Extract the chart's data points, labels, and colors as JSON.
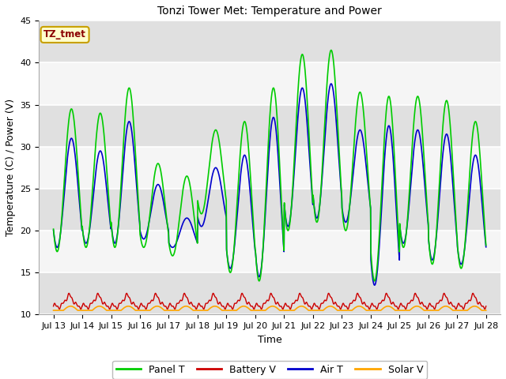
{
  "title": "Tonzi Tower Met: Temperature and Power",
  "xlabel": "Time",
  "ylabel": "Temperature (C) / Power (V)",
  "ylim": [
    10,
    45
  ],
  "annotation_text": "TZ_tmet",
  "annotation_color": "#8B0000",
  "annotation_bg": "#FFFFCC",
  "annotation_border": "#C8A000",
  "fig_bg": "#FFFFFF",
  "plot_bg_light": "#F5F5F5",
  "plot_bg_dark": "#E0E0E0",
  "grid_color": "#FFFFFF",
  "line_colors": {
    "panel_t": "#00CC00",
    "battery_v": "#CC0000",
    "air_t": "#0000CC",
    "solar_v": "#FFA500"
  },
  "xtick_labels": [
    "Jul 13",
    "Jul 14",
    "Jul 15",
    "Jul 16",
    "Jul 17",
    "Jul 18",
    "Jul 19",
    "Jul 20",
    "Jul 21",
    "Jul 22",
    "Jul 23",
    "Jul 24",
    "Jul 25",
    "Jul 26",
    "Jul 27",
    "Jul 28"
  ],
  "xtick_positions": [
    0,
    1,
    2,
    3,
    4,
    5,
    6,
    7,
    8,
    9,
    10,
    11,
    12,
    13,
    14,
    15
  ],
  "ytick_positions": [
    10,
    15,
    20,
    25,
    30,
    35,
    40,
    45
  ],
  "daily_peaks": [
    34.5,
    34.0,
    37.0,
    28.0,
    26.5,
    32.0,
    33.0,
    37.0,
    41.0,
    41.5,
    36.5,
    36.0,
    36.0,
    35.5,
    33.0
  ],
  "daily_troughs": [
    17.5,
    18.0,
    18.0,
    18.0,
    17.0,
    22.0,
    15.0,
    14.0,
    20.0,
    21.0,
    20.0,
    14.0,
    18.0,
    16.0,
    15.5
  ],
  "air_peaks": [
    31.0,
    29.5,
    33.0,
    25.5,
    21.5,
    27.5,
    29.0,
    33.5,
    37.0,
    37.5,
    32.0,
    32.5,
    32.0,
    31.5,
    29.0
  ],
  "air_troughs": [
    18.0,
    18.5,
    18.5,
    19.0,
    18.0,
    20.5,
    15.5,
    14.5,
    20.5,
    21.5,
    21.0,
    13.5,
    18.5,
    16.5,
    16.0
  ]
}
